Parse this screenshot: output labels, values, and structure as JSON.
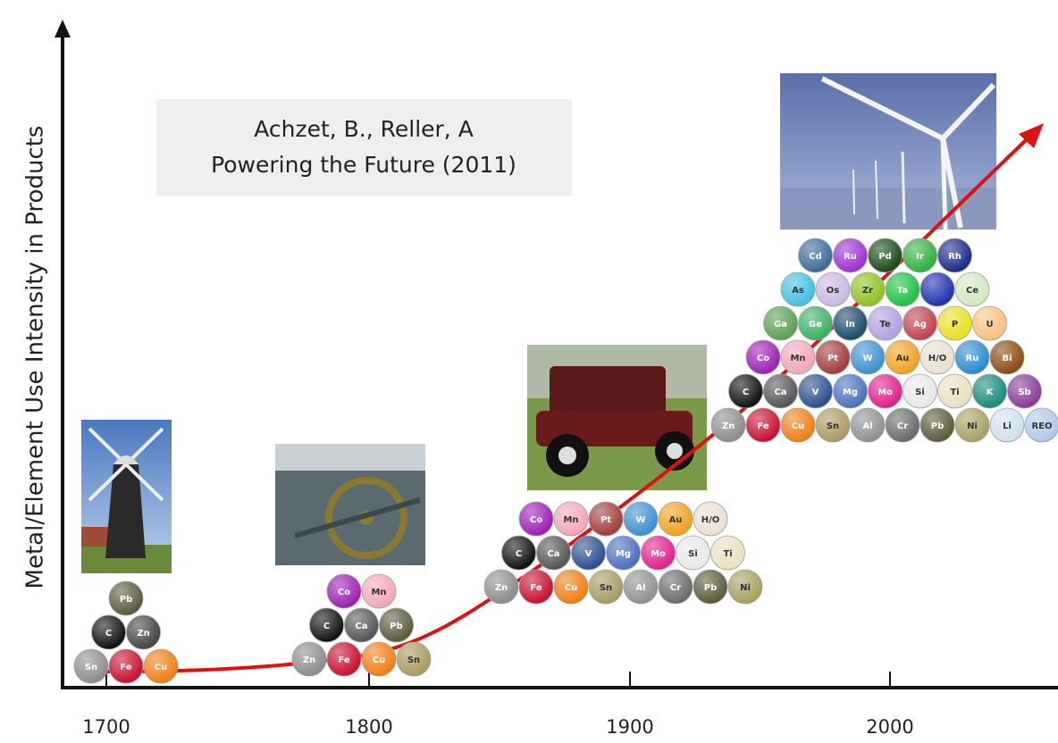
{
  "y_axis_label": "Metal/Element Use Intensity in Products",
  "citation": [
    "Achzet, B., Reller, A",
    "Powering the Future (2011)"
  ],
  "x_ticks": [
    "1700",
    "1800",
    "1900",
    "2000"
  ],
  "groups": [
    {
      "rows": [
        [
          {
            "symbol": "Sn",
            "color": "#8c8c8c"
          },
          {
            "symbol": "Fe",
            "color": "#c8102e"
          },
          {
            "symbol": "Cu",
            "color": "#f07d12"
          }
        ],
        [
          {
            "symbol": "C",
            "color": "#111111"
          },
          {
            "symbol": "Zn",
            "color": "#444444"
          }
        ],
        [
          {
            "symbol": "Pb",
            "color": "#5a5a3a"
          }
        ]
      ]
    },
    {
      "rows": [
        [
          {
            "symbol": "Zn",
            "color": "#8c8c8c"
          },
          {
            "symbol": "Fe",
            "color": "#c8102e"
          },
          {
            "symbol": "Cu",
            "color": "#f07d12"
          },
          {
            "symbol": "Sn",
            "color": "#a89a60"
          }
        ],
        [
          {
            "symbol": "C",
            "color": "#111111"
          },
          {
            "symbol": "Ca",
            "color": "#555555"
          },
          {
            "symbol": "Pb",
            "color": "#5a5a3a"
          }
        ],
        [
          {
            "symbol": "Co",
            "color": "#9b1fb5"
          },
          {
            "symbol": "Mn",
            "color": "#f4a6b8"
          }
        ]
      ]
    },
    {
      "rows": [
        [
          {
            "symbol": "Zn",
            "color": "#8c8c8c"
          },
          {
            "symbol": "Fe",
            "color": "#c8102e"
          },
          {
            "symbol": "Cu",
            "color": "#f07d12"
          },
          {
            "symbol": "Sn",
            "color": "#a89a60"
          },
          {
            "symbol": "Al",
            "color": "#909090"
          },
          {
            "symbol": "Cr",
            "color": "#6a6a6a"
          },
          {
            "symbol": "Pb",
            "color": "#5a5a3a"
          },
          {
            "symbol": "Ni",
            "color": "#a8a060"
          }
        ],
        [
          {
            "symbol": "C",
            "color": "#111111"
          },
          {
            "symbol": "Ca",
            "color": "#555555"
          },
          {
            "symbol": "V",
            "color": "#2b4f8f"
          },
          {
            "symbol": "Mg",
            "color": "#4a6fbf"
          },
          {
            "symbol": "Mo",
            "color": "#e0208a"
          },
          {
            "symbol": "Si",
            "color": "#e8e8e8"
          },
          {
            "symbol": "Ti",
            "color": "#e8e0c0"
          }
        ],
        [
          {
            "symbol": "Co",
            "color": "#9b1fb5"
          },
          {
            "symbol": "Mn",
            "color": "#f4a6b8"
          },
          {
            "symbol": "Pt",
            "color": "#a33b3b"
          },
          {
            "symbol": "W",
            "color": "#3d8fd0"
          },
          {
            "symbol": "Au",
            "color": "#f0a020"
          },
          {
            "symbol": "H/O",
            "color": "#e8e0d0"
          }
        ]
      ]
    },
    {
      "rows": [
        [
          {
            "symbol": "Zn",
            "color": "#8c8c8c"
          },
          {
            "symbol": "Fe",
            "color": "#c8102e"
          },
          {
            "symbol": "Cu",
            "color": "#f07d12"
          },
          {
            "symbol": "Sn",
            "color": "#a89a60"
          },
          {
            "symbol": "Al",
            "color": "#909090"
          },
          {
            "symbol": "Cr",
            "color": "#6a6a6a"
          },
          {
            "symbol": "Pb",
            "color": "#5a5a3a"
          },
          {
            "symbol": "Ni",
            "color": "#a8a060"
          },
          {
            "symbol": "Li",
            "color": "#d0e0f0"
          },
          {
            "symbol": "REO",
            "color": "#b0c8e8"
          }
        ],
        [
          {
            "symbol": "C",
            "color": "#111111"
          },
          {
            "symbol": "Ca",
            "color": "#555555"
          },
          {
            "symbol": "V",
            "color": "#2b4f8f"
          },
          {
            "symbol": "Mg",
            "color": "#4a6fbf"
          },
          {
            "symbol": "Mo",
            "color": "#e0208a"
          },
          {
            "symbol": "Si",
            "color": "#e8e8e8"
          },
          {
            "symbol": "Ti",
            "color": "#e8e0c0"
          },
          {
            "symbol": "K",
            "color": "#1a8a7a"
          },
          {
            "symbol": "Sb",
            "color": "#8a3a9a"
          }
        ],
        [
          {
            "symbol": "Co",
            "color": "#9b1fb5"
          },
          {
            "symbol": "Mn",
            "color": "#f4a6b8"
          },
          {
            "symbol": "Pt",
            "color": "#a33b3b"
          },
          {
            "symbol": "W",
            "color": "#3d8fd0"
          },
          {
            "symbol": "Au",
            "color": "#f0a020"
          },
          {
            "symbol": "H/O",
            "color": "#e8e0d0"
          },
          {
            "symbol": "Ru",
            "color": "#2a8ad0"
          },
          {
            "symbol": "Bi",
            "color": "#8a4a10"
          }
        ],
        [
          {
            "symbol": "Ga",
            "color": "#5aa050"
          },
          {
            "symbol": "Ge",
            "color": "#3ab060"
          },
          {
            "symbol": "In",
            "color": "#1a4a6a"
          },
          {
            "symbol": "Te",
            "color": "#b0a0e0"
          },
          {
            "symbol": "Ag",
            "color": "#c04050"
          },
          {
            "symbol": "P",
            "color": "#e8e020"
          },
          {
            "symbol": "U",
            "color": "#f8c080"
          }
        ],
        [
          {
            "symbol": "As",
            "color": "#40c0e0"
          },
          {
            "symbol": "Os",
            "color": "#c8b8e0"
          },
          {
            "symbol": "Zr",
            "color": "#90c020"
          },
          {
            "symbol": "Ta",
            "color": "#20c040"
          },
          {
            "symbol": null,
            "color": "#2030b0"
          },
          {
            "symbol": "Ce",
            "color": "#d0e8c0"
          }
        ],
        [
          {
            "symbol": "Cd",
            "color": "#3a6a9a"
          },
          {
            "symbol": "Ru",
            "color": "#a030d0"
          },
          {
            "symbol": "Pd",
            "color": "#1a4a1a"
          },
          {
            "symbol": "Ir",
            "color": "#30b040"
          },
          {
            "symbol": "Rh",
            "color": "#1a2a8a"
          }
        ]
      ]
    }
  ]
}
